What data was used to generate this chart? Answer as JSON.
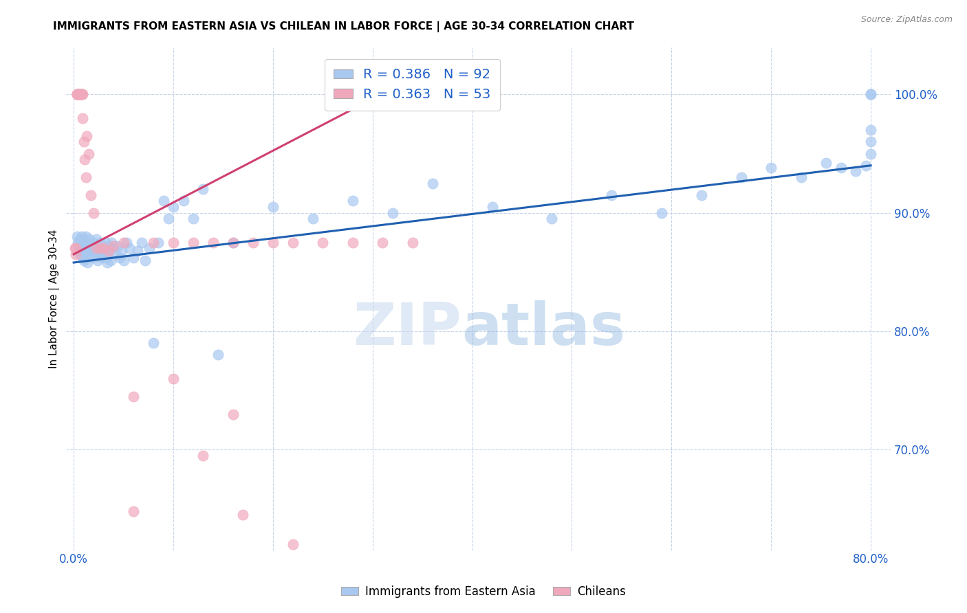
{
  "title": "IMMIGRANTS FROM EASTERN ASIA VS CHILEAN IN LABOR FORCE | AGE 30-34 CORRELATION CHART",
  "source": "Source: ZipAtlas.com",
  "ylabel": "In Labor Force | Age 30-34",
  "xlim": [
    -0.008,
    0.82
  ],
  "ylim": [
    0.615,
    1.04
  ],
  "yticks": [
    0.7,
    0.8,
    0.9,
    1.0
  ],
  "ytick_labels": [
    "70.0%",
    "80.0%",
    "90.0%",
    "100.0%"
  ],
  "xticks": [
    0.0,
    0.1,
    0.2,
    0.3,
    0.4,
    0.5,
    0.6,
    0.7,
    0.8
  ],
  "xtick_labels": [
    "0.0%",
    "",
    "",
    "",
    "",
    "",
    "",
    "",
    "80.0%"
  ],
  "R_blue": 0.386,
  "N_blue": 92,
  "R_pink": 0.363,
  "N_pink": 53,
  "blue_color": "#a8c8f0",
  "pink_color": "#f0a8bc",
  "trendline_blue": "#2060b0",
  "trendline_pink": "#d04070",
  "legend_text_color": "#2060c8",
  "blue_trend_x0": 0.0,
  "blue_trend_y0": 0.858,
  "blue_trend_x1": 0.8,
  "blue_trend_y1": 0.94,
  "pink_trend_x0": 0.0,
  "pink_trend_y0": 0.865,
  "pink_trend_x1": 0.32,
  "pink_trend_y1": 1.005,
  "blue_x": [
    0.003,
    0.004,
    0.005,
    0.005,
    0.006,
    0.006,
    0.007,
    0.007,
    0.008,
    0.008,
    0.009,
    0.009,
    0.01,
    0.01,
    0.01,
    0.011,
    0.011,
    0.012,
    0.012,
    0.013,
    0.013,
    0.014,
    0.014,
    0.015,
    0.015,
    0.016,
    0.017,
    0.018,
    0.019,
    0.02,
    0.021,
    0.022,
    0.023,
    0.024,
    0.025,
    0.026,
    0.027,
    0.028,
    0.029,
    0.03,
    0.032,
    0.033,
    0.034,
    0.035,
    0.036,
    0.037,
    0.038,
    0.04,
    0.042,
    0.044,
    0.046,
    0.048,
    0.05,
    0.053,
    0.056,
    0.06,
    0.064,
    0.068,
    0.072,
    0.076,
    0.08,
    0.085,
    0.09,
    0.095,
    0.1,
    0.11,
    0.12,
    0.13,
    0.145,
    0.16,
    0.2,
    0.24,
    0.28,
    0.32,
    0.36,
    0.42,
    0.48,
    0.54,
    0.59,
    0.63,
    0.67,
    0.7,
    0.73,
    0.755,
    0.77,
    0.785,
    0.795,
    0.8,
    0.8,
    0.8,
    0.8,
    0.8
  ],
  "blue_y": [
    0.88,
    0.875,
    0.872,
    0.868,
    0.878,
    0.865,
    0.875,
    0.87,
    0.88,
    0.868,
    0.875,
    0.862,
    0.878,
    0.87,
    0.86,
    0.875,
    0.865,
    0.88,
    0.868,
    0.875,
    0.862,
    0.87,
    0.858,
    0.875,
    0.865,
    0.878,
    0.872,
    0.868,
    0.862,
    0.875,
    0.87,
    0.865,
    0.878,
    0.86,
    0.872,
    0.868,
    0.875,
    0.862,
    0.87,
    0.865,
    0.875,
    0.862,
    0.858,
    0.872,
    0.868,
    0.86,
    0.875,
    0.87,
    0.865,
    0.872,
    0.862,
    0.868,
    0.86,
    0.875,
    0.87,
    0.862,
    0.868,
    0.875,
    0.86,
    0.87,
    0.79,
    0.875,
    0.91,
    0.895,
    0.905,
    0.91,
    0.895,
    0.92,
    0.78,
    0.875,
    0.905,
    0.895,
    0.91,
    0.9,
    0.925,
    0.905,
    0.895,
    0.915,
    0.9,
    0.915,
    0.93,
    0.938,
    0.93,
    0.942,
    0.938,
    0.935,
    0.94,
    0.95,
    0.96,
    0.97,
    1.0,
    1.0
  ],
  "pink_x": [
    0.001,
    0.002,
    0.002,
    0.003,
    0.003,
    0.003,
    0.004,
    0.004,
    0.004,
    0.005,
    0.005,
    0.005,
    0.006,
    0.006,
    0.007,
    0.007,
    0.007,
    0.008,
    0.008,
    0.009,
    0.009,
    0.01,
    0.011,
    0.012,
    0.013,
    0.015,
    0.017,
    0.02,
    0.023,
    0.027,
    0.03,
    0.035,
    0.04,
    0.05,
    0.06,
    0.08,
    0.1,
    0.12,
    0.14,
    0.16,
    0.18,
    0.2,
    0.22,
    0.25,
    0.28,
    0.31,
    0.34,
    0.16,
    0.06,
    0.1,
    0.13,
    0.17,
    0.22
  ],
  "pink_y": [
    0.87,
    0.87,
    0.865,
    1.0,
    1.0,
    1.0,
    1.0,
    1.0,
    1.0,
    1.0,
    1.0,
    1.0,
    1.0,
    1.0,
    1.0,
    1.0,
    1.0,
    1.0,
    1.0,
    1.0,
    0.98,
    0.96,
    0.945,
    0.93,
    0.965,
    0.95,
    0.915,
    0.9,
    0.87,
    0.87,
    0.87,
    0.868,
    0.872,
    0.875,
    0.648,
    0.875,
    0.875,
    0.875,
    0.875,
    0.875,
    0.875,
    0.875,
    0.875,
    0.875,
    0.875,
    0.875,
    0.875,
    0.73,
    0.745,
    0.76,
    0.695,
    0.645,
    0.62
  ]
}
